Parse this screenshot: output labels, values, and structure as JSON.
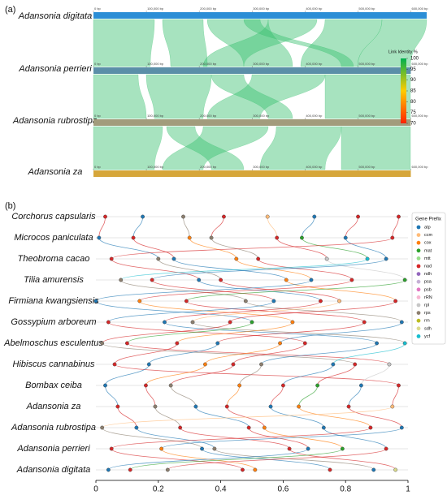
{
  "chart_data": [
    {
      "type": "synteny",
      "label": "(a)",
      "xlim": [
        0,
        630000
      ],
      "xticks": [
        {
          "value": 0,
          "label": "0 bp"
        },
        {
          "value": 100000,
          "label": "100,000 bp"
        },
        {
          "value": 200000,
          "label": "200,000 bp"
        },
        {
          "value": 300000,
          "label": "300,000 bp"
        },
        {
          "value": 400000,
          "label": "400,000 bp"
        },
        {
          "value": 500000,
          "label": "500,000 bp"
        },
        {
          "value": 600000,
          "label": "600,000 bp"
        }
      ],
      "tracks": [
        {
          "name": "Adansonia digitata",
          "color": "#2b8ed6",
          "length": 630000
        },
        {
          "name": "Adansonia perrieri",
          "color": "#5b8fa8",
          "length": 600000
        },
        {
          "name": "Adansonia rubrostipa",
          "color": "#a29c7c",
          "length": 600000
        },
        {
          "name": "Adansonia za",
          "color": "#d6a63a",
          "length": 600000
        }
      ],
      "link_color": "#3cc070",
      "colorbar": {
        "title": "Link Identity %",
        "lim": [
          70,
          100
        ],
        "ticks": [
          100,
          95,
          90,
          85,
          80,
          75,
          70
        ],
        "colors": [
          "#ff2200",
          "#ffcc00",
          "#00b04f"
        ]
      }
    },
    {
      "type": "gene-order",
      "label": "(b)",
      "xlim": [
        0,
        1
      ],
      "xticks": [
        0,
        0.2,
        0.4,
        0.6,
        0.8,
        1
      ],
      "legend_title": "Gene Prefix",
      "prefixes": [
        {
          "name": "atp",
          "color": "#1f77b4"
        },
        {
          "name": "ccm",
          "color": "#ffbb78"
        },
        {
          "name": "cox",
          "color": "#ff7f0e"
        },
        {
          "name": "mat",
          "color": "#2ca02c"
        },
        {
          "name": "mtt",
          "color": "#98df8a"
        },
        {
          "name": "nad",
          "color": "#d62728"
        },
        {
          "name": "ndh",
          "color": "#9467bd"
        },
        {
          "name": "psa",
          "color": "#c5b0d5"
        },
        {
          "name": "psb",
          "color": "#e377c2"
        },
        {
          "name": "rRN",
          "color": "#f7b6d2"
        },
        {
          "name": "rpl",
          "color": "#c7c7c7"
        },
        {
          "name": "rps",
          "color": "#8c7f6f"
        },
        {
          "name": "rrn",
          "color": "#bcbd22"
        },
        {
          "name": "sdh",
          "color": "#dbdb8d"
        },
        {
          "name": "ycf",
          "color": "#17becf"
        }
      ],
      "rows": [
        {
          "name": "Corchorus capsularis",
          "x": [
            0.03,
            0.15,
            0.28,
            0.41,
            0.55,
            0.7,
            0.84,
            0.97
          ],
          "prefix": [
            "nad",
            "atp",
            "rps",
            "nad",
            "ccm",
            "atp",
            "nad",
            "nad"
          ]
        },
        {
          "name": "Microcos paniculata",
          "x": [
            0.01,
            0.12,
            0.3,
            0.37,
            0.58,
            0.66,
            0.8,
            0.95
          ],
          "prefix": [
            "atp",
            "nad",
            "cox",
            "rps",
            "nad",
            "mat",
            "atp",
            "nad"
          ]
        },
        {
          "name": "Theobroma cacao",
          "x": [
            0.05,
            0.2,
            0.25,
            0.45,
            0.52,
            0.74,
            0.87,
            0.93
          ],
          "prefix": [
            "nad",
            "rps",
            "atp",
            "cox",
            "nad",
            "rpl",
            "ycf",
            "atp"
          ]
        },
        {
          "name": "Tilia amurensis",
          "x": [
            0.08,
            0.18,
            0.33,
            0.4,
            0.61,
            0.69,
            0.82,
            0.99
          ],
          "prefix": [
            "rps",
            "nad",
            "atp",
            "nad",
            "cox",
            "atp",
            "nad",
            "mat"
          ]
        },
        {
          "name": "Firmiana kwangsiensis",
          "x": [
            0.0,
            0.14,
            0.29,
            0.48,
            0.57,
            0.72,
            0.78,
            0.96
          ],
          "prefix": [
            "atp",
            "cox",
            "nad",
            "rps",
            "atp",
            "nad",
            "ccm",
            "nad"
          ]
        },
        {
          "name": "Gossypium arboreum",
          "x": [
            0.04,
            0.22,
            0.31,
            0.43,
            0.5,
            0.63,
            0.86,
            0.98
          ],
          "prefix": [
            "nad",
            "atp",
            "rps",
            "nad",
            "mat",
            "cox",
            "nad",
            "atp"
          ]
        },
        {
          "name": "Abelmoschus esculentus",
          "x": [
            0.02,
            0.1,
            0.26,
            0.39,
            0.59,
            0.67,
            0.9,
            0.99
          ],
          "prefix": [
            "rps",
            "nad",
            "nad",
            "atp",
            "cox",
            "nad",
            "atp",
            "ycf"
          ]
        },
        {
          "name": "Hibiscus cannabinus",
          "x": [
            0.06,
            0.17,
            0.35,
            0.44,
            0.53,
            0.76,
            0.83,
            0.94
          ],
          "prefix": [
            "nad",
            "atp",
            "cox",
            "nad",
            "rps",
            "atp",
            "nad",
            "rpl"
          ]
        },
        {
          "name": "Bombax ceiba",
          "x": [
            0.03,
            0.16,
            0.24,
            0.46,
            0.6,
            0.71,
            0.85,
            0.97
          ],
          "prefix": [
            "atp",
            "nad",
            "rps",
            "cox",
            "nad",
            "mat",
            "atp",
            "nad"
          ]
        },
        {
          "name": "Adansonia za",
          "x": [
            0.07,
            0.19,
            0.32,
            0.42,
            0.56,
            0.65,
            0.81,
            0.95
          ],
          "prefix": [
            "nad",
            "rps",
            "atp",
            "nad",
            "atp",
            "cox",
            "nad",
            "ccm"
          ]
        },
        {
          "name": "Adansonia rubrostipa",
          "x": [
            0.02,
            0.13,
            0.27,
            0.49,
            0.54,
            0.73,
            0.88,
            0.98
          ],
          "prefix": [
            "rps",
            "atp",
            "nad",
            "nad",
            "cox",
            "atp",
            "nad",
            "atp"
          ]
        },
        {
          "name": "Adansonia perrieri",
          "x": [
            0.05,
            0.21,
            0.34,
            0.38,
            0.62,
            0.68,
            0.79,
            0.93
          ],
          "prefix": [
            "nad",
            "cox",
            "atp",
            "rps",
            "nad",
            "atp",
            "mat",
            "nad"
          ]
        },
        {
          "name": "Adansonia digitata",
          "x": [
            0.04,
            0.11,
            0.23,
            0.47,
            0.51,
            0.75,
            0.89,
            0.96
          ],
          "prefix": [
            "atp",
            "nad",
            "rps",
            "nad",
            "cox",
            "nad",
            "atp",
            "sdh"
          ]
        }
      ]
    }
  ]
}
